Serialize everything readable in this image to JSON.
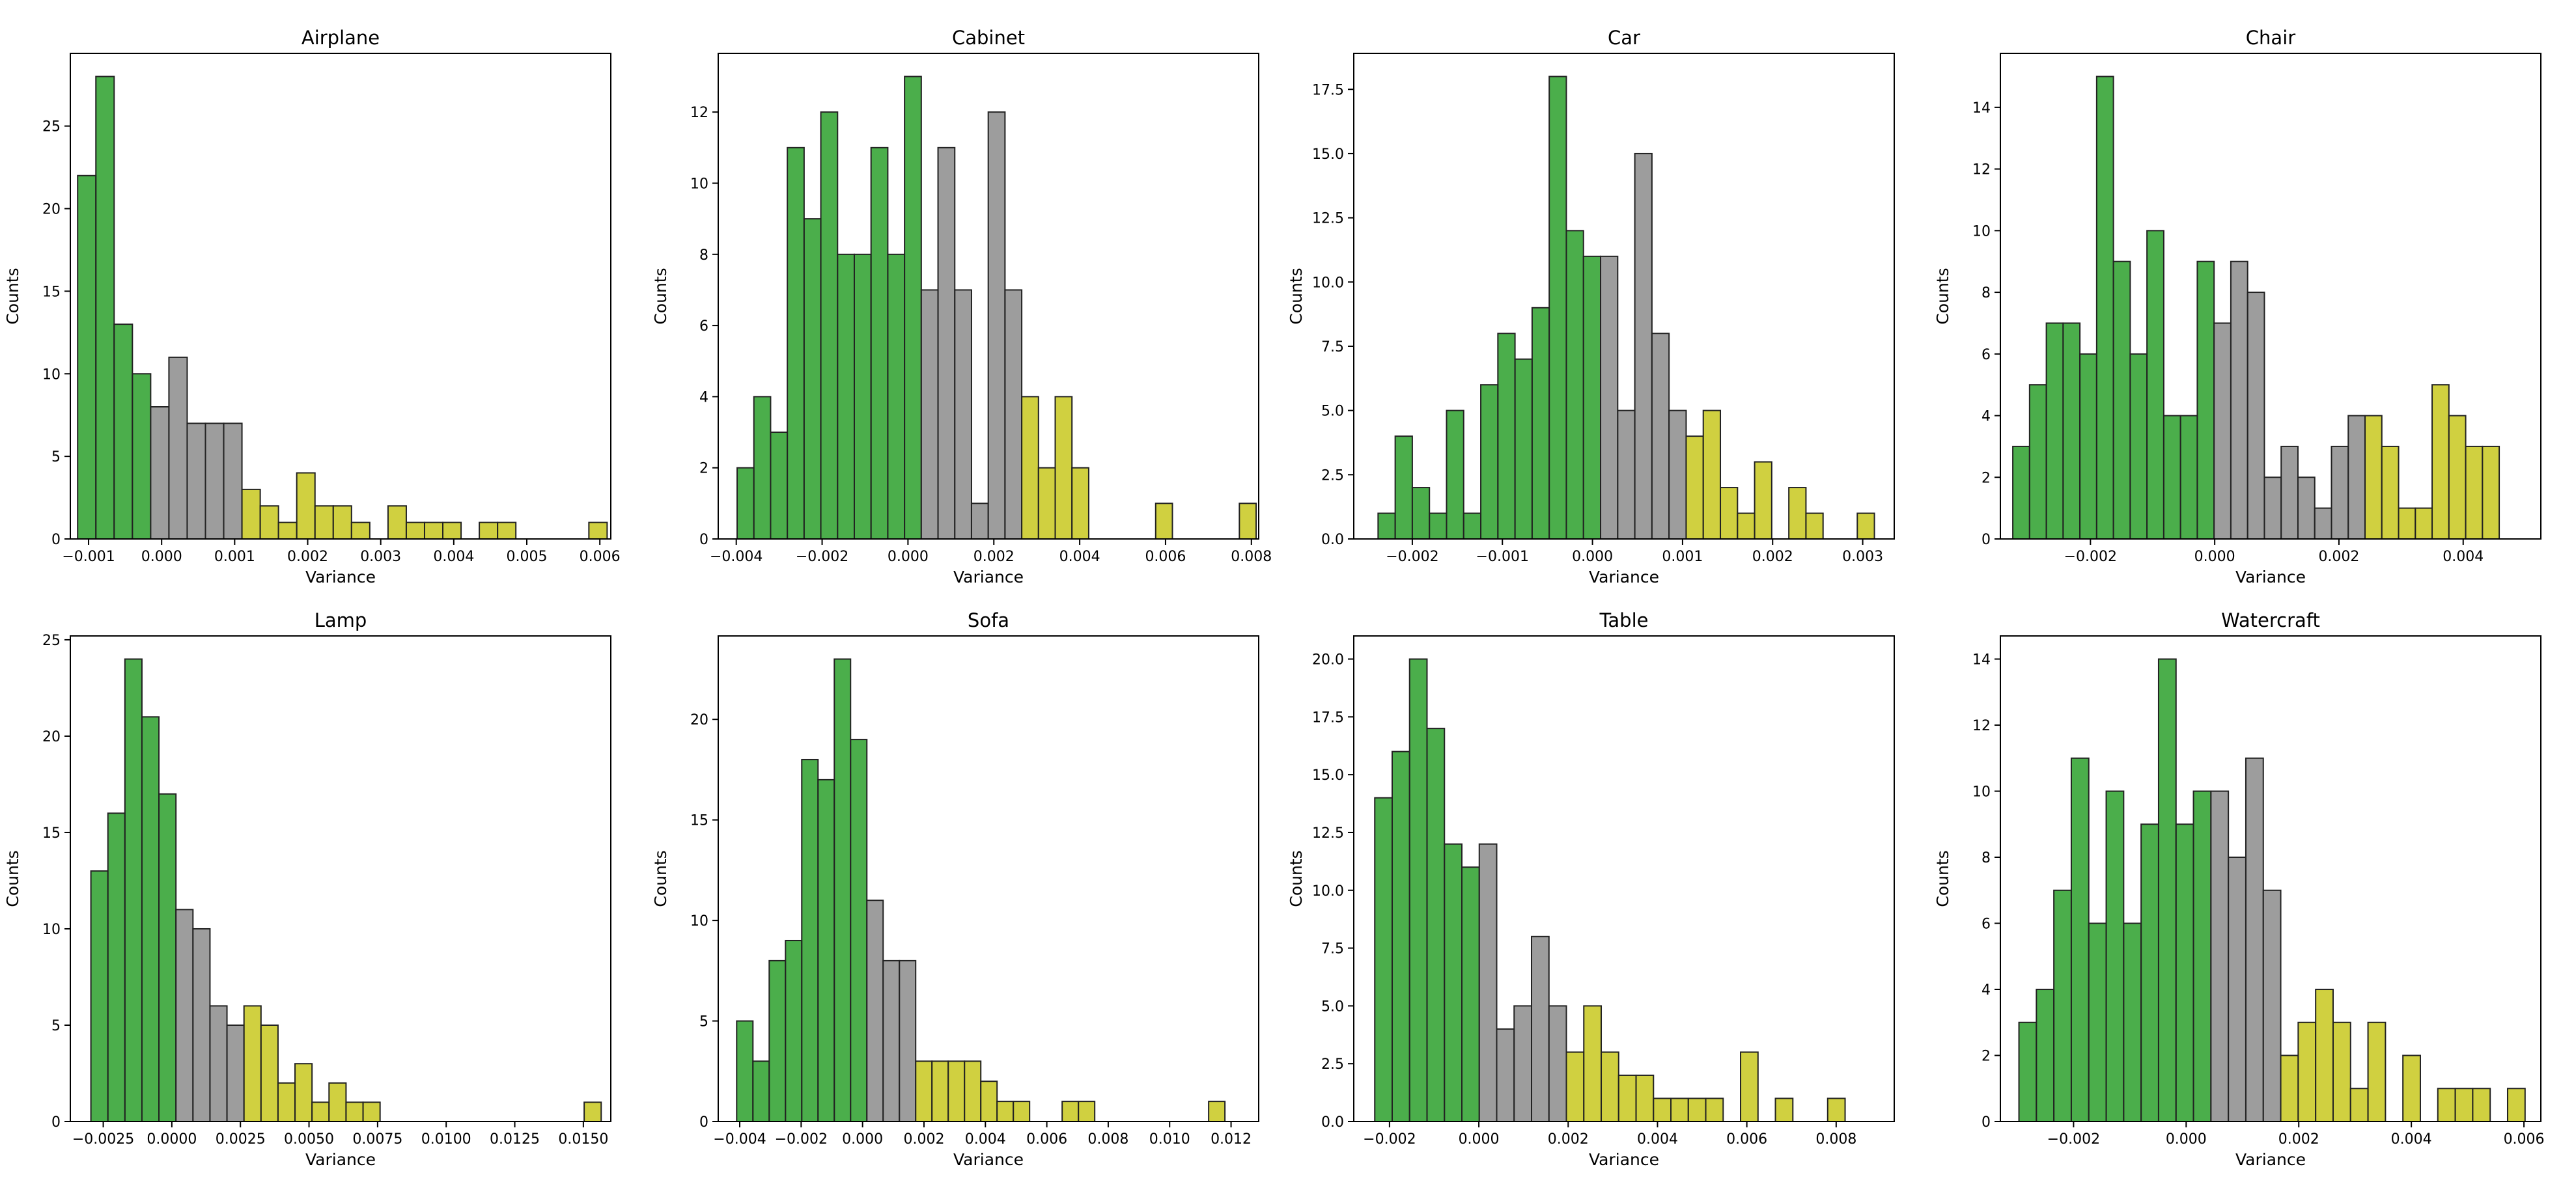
{
  "figure": {
    "colors": {
      "low": "#2ca02c",
      "mid": "#8c8c8c",
      "high": "#c8c81e",
      "edge": "#222222",
      "axis": "#000000"
    },
    "bar_alpha": 0.85
  },
  "chart_data": [
    {
      "type": "bar",
      "title": "Airplane",
      "xlabel": "Variance",
      "ylabel": "Counts",
      "xlim": [
        -0.00125,
        0.00615
      ],
      "ylim": [
        0,
        29.4
      ],
      "xticks": [
        -0.001,
        0.0,
        0.001,
        0.002,
        0.003,
        0.004,
        0.005,
        0.006
      ],
      "xtick_labels": [
        "−0.001",
        "0.000",
        "0.001",
        "0.002",
        "0.003",
        "0.004",
        "0.005",
        "0.006"
      ],
      "yticks": [
        0,
        5,
        10,
        15,
        20,
        25
      ],
      "ytick_labels": [
        "0",
        "5",
        "10",
        "15",
        "20",
        "25"
      ],
      "bin_start": -0.00115,
      "bin_width": 0.00025,
      "counts": [
        22,
        28,
        13,
        10,
        8,
        11,
        7,
        7,
        7,
        3,
        2,
        1,
        4,
        2,
        2,
        1,
        0,
        2,
        1,
        1,
        1,
        0,
        1,
        1,
        0,
        0,
        0,
        0,
        1
      ],
      "groups": [
        "low",
        "low",
        "low",
        "low",
        "mid",
        "mid",
        "mid",
        "mid",
        "mid",
        "high",
        "high",
        "high",
        "high",
        "high",
        "high",
        "high",
        "high",
        "high",
        "high",
        "high",
        "high",
        "high",
        "high",
        "high",
        "high",
        "high",
        "high",
        "high",
        "high"
      ]
    },
    {
      "type": "bar",
      "title": "Cabinet",
      "xlabel": "Variance",
      "ylabel": "Counts",
      "xlim": [
        -0.00442,
        0.00817
      ],
      "ylim": [
        0,
        13.65
      ],
      "xticks": [
        -0.004,
        -0.002,
        0.0,
        0.002,
        0.004,
        0.006,
        0.008
      ],
      "xtick_labels": [
        "−0.004",
        "−0.002",
        "0.000",
        "0.002",
        "0.004",
        "0.006",
        "0.008"
      ],
      "yticks": [
        0,
        2,
        4,
        6,
        8,
        10,
        12
      ],
      "ytick_labels": [
        "0",
        "2",
        "4",
        "6",
        "8",
        "10",
        "12"
      ],
      "bin_start": -0.00398,
      "bin_width": 0.00039,
      "counts": [
        2,
        4,
        3,
        11,
        9,
        12,
        8,
        8,
        11,
        8,
        13,
        7,
        11,
        7,
        1,
        12,
        7,
        4,
        2,
        4,
        2,
        0,
        0,
        0,
        0,
        1,
        0,
        0,
        0,
        0,
        1
      ],
      "groups": [
        "low",
        "low",
        "low",
        "low",
        "low",
        "low",
        "low",
        "low",
        "low",
        "low",
        "low",
        "mid",
        "mid",
        "mid",
        "mid",
        "mid",
        "mid",
        "high",
        "high",
        "high",
        "high",
        "high",
        "high",
        "high",
        "high",
        "high",
        "high",
        "high",
        "high",
        "high",
        "high"
      ]
    },
    {
      "type": "bar",
      "title": "Car",
      "xlabel": "Variance",
      "ylabel": "Counts",
      "xlim": [
        -0.00265,
        0.00335
      ],
      "ylim": [
        0,
        18.9
      ],
      "xticks": [
        -0.002,
        -0.001,
        0.0,
        0.001,
        0.002,
        0.003
      ],
      "xtick_labels": [
        "−0.002",
        "−0.001",
        "0.000",
        "0.001",
        "0.002",
        "0.003"
      ],
      "yticks": [
        0,
        2.5,
        5,
        7.5,
        10,
        12.5,
        15,
        17.5
      ],
      "ytick_labels": [
        "0.0",
        "2.5",
        "5.0",
        "7.5",
        "10.0",
        "12.5",
        "15.0",
        "17.5"
      ],
      "bin_start": -0.00238,
      "bin_width": 0.00019,
      "counts": [
        1,
        4,
        2,
        1,
        5,
        1,
        6,
        8,
        7,
        9,
        18,
        12,
        11,
        11,
        5,
        15,
        8,
        5,
        4,
        5,
        2,
        1,
        3,
        0,
        2,
        1,
        0,
        0,
        1
      ],
      "groups": [
        "low",
        "low",
        "low",
        "low",
        "low",
        "low",
        "low",
        "low",
        "low",
        "low",
        "low",
        "low",
        "low",
        "mid",
        "mid",
        "mid",
        "mid",
        "mid",
        "high",
        "high",
        "high",
        "high",
        "high",
        "high",
        "high",
        "high",
        "high",
        "high",
        "high"
      ]
    },
    {
      "type": "bar",
      "title": "Chair",
      "xlabel": "Variance",
      "ylabel": "Counts",
      "xlim": [
        -0.00345,
        0.00525
      ],
      "ylim": [
        0,
        15.75
      ],
      "xticks": [
        -0.002,
        0.0,
        0.002,
        0.004
      ],
      "xtick_labels": [
        "−0.002",
        "0.000",
        "0.002",
        "0.004"
      ],
      "yticks": [
        0,
        2,
        4,
        6,
        8,
        10,
        12,
        14
      ],
      "ytick_labels": [
        "0",
        "2",
        "4",
        "6",
        "8",
        "10",
        "12",
        "14"
      ],
      "bin_start": -0.00325,
      "bin_width": 0.00027,
      "counts": [
        3,
        5,
        7,
        7,
        6,
        15,
        9,
        6,
        10,
        4,
        4,
        9,
        7,
        9,
        8,
        2,
        3,
        2,
        1,
        3,
        4,
        4,
        3,
        1,
        1,
        5,
        4,
        3,
        3
      ],
      "groups": [
        "low",
        "low",
        "low",
        "low",
        "low",
        "low",
        "low",
        "low",
        "low",
        "low",
        "low",
        "low",
        "mid",
        "mid",
        "mid",
        "mid",
        "mid",
        "mid",
        "mid",
        "mid",
        "mid",
        "high",
        "high",
        "high",
        "high",
        "high",
        "high",
        "high",
        "high"
      ]
    },
    {
      "type": "bar",
      "title": "Lamp",
      "xlabel": "Variance",
      "ylabel": "Counts",
      "xlim": [
        -0.0037,
        0.016
      ],
      "ylim": [
        0,
        25.2
      ],
      "xticks": [
        -0.0025,
        0.0,
        0.0025,
        0.005,
        0.0075,
        0.01,
        0.0125,
        0.015
      ],
      "xtick_labels": [
        "−0.0025",
        "0.0000",
        "0.0025",
        "0.0050",
        "0.0075",
        "0.0100",
        "0.0125",
        "0.0150"
      ],
      "yticks": [
        0,
        5,
        10,
        15,
        20,
        25
      ],
      "ytick_labels": [
        "0",
        "5",
        "10",
        "15",
        "20",
        "25"
      ],
      "bin_start": -0.00295,
      "bin_width": 0.00062,
      "counts": [
        13,
        16,
        24,
        21,
        17,
        11,
        10,
        6,
        5,
        6,
        5,
        2,
        3,
        1,
        2,
        1,
        1,
        0,
        0,
        0,
        0,
        0,
        0,
        0,
        0,
        0,
        0,
        0,
        0,
        1
      ],
      "groups": [
        "low",
        "low",
        "low",
        "low",
        "low",
        "mid",
        "mid",
        "mid",
        "mid",
        "high",
        "high",
        "high",
        "high",
        "high",
        "high",
        "high",
        "high",
        "high",
        "high",
        "high",
        "high",
        "high",
        "high",
        "high",
        "high",
        "high",
        "high",
        "high",
        "high",
        "high"
      ]
    },
    {
      "type": "bar",
      "title": "Sofa",
      "xlabel": "Variance",
      "ylabel": "Counts",
      "xlim": [
        -0.0047,
        0.0129
      ],
      "ylim": [
        0,
        24.15
      ],
      "xticks": [
        -0.004,
        -0.002,
        0.0,
        0.002,
        0.004,
        0.006,
        0.008,
        0.01,
        0.012
      ],
      "xtick_labels": [
        "−0.004",
        "−0.002",
        "0.000",
        "0.002",
        "0.004",
        "0.006",
        "0.008",
        "0.010",
        "0.012"
      ],
      "yticks": [
        0,
        5,
        10,
        15,
        20
      ],
      "ytick_labels": [
        "0",
        "5",
        "10",
        "15",
        "20"
      ],
      "bin_start": -0.0041,
      "bin_width": 0.00053,
      "counts": [
        5,
        3,
        8,
        9,
        18,
        17,
        23,
        19,
        11,
        8,
        8,
        3,
        3,
        3,
        3,
        2,
        1,
        1,
        0,
        0,
        1,
        1,
        0,
        0,
        0,
        0,
        0,
        0,
        0,
        1
      ],
      "groups": [
        "low",
        "low",
        "low",
        "low",
        "low",
        "low",
        "low",
        "low",
        "mid",
        "mid",
        "mid",
        "high",
        "high",
        "high",
        "high",
        "high",
        "high",
        "high",
        "high",
        "high",
        "high",
        "high",
        "high",
        "high",
        "high",
        "high",
        "high",
        "high",
        "high",
        "high"
      ]
    },
    {
      "type": "bar",
      "title": "Table",
      "xlabel": "Variance",
      "ylabel": "Counts",
      "xlim": [
        -0.0028,
        0.0093
      ],
      "ylim": [
        0,
        21.0
      ],
      "xticks": [
        -0.002,
        0.0,
        0.002,
        0.004,
        0.006,
        0.008
      ],
      "xtick_labels": [
        "−0.002",
        "0.000",
        "0.002",
        "0.004",
        "0.006",
        "0.008"
      ],
      "yticks": [
        0,
        2.5,
        5,
        7.5,
        10,
        12.5,
        15,
        17.5,
        20
      ],
      "ytick_labels": [
        "0.0",
        "2.5",
        "5.0",
        "7.5",
        "10.0",
        "12.5",
        "15.0",
        "17.5",
        "20.0"
      ],
      "bin_start": -0.00233,
      "bin_width": 0.00039,
      "counts": [
        14,
        16,
        20,
        17,
        12,
        11,
        12,
        4,
        5,
        8,
        5,
        3,
        5,
        3,
        2,
        2,
        1,
        1,
        1,
        1,
        0,
        3,
        0,
        1,
        0,
        0,
        1
      ],
      "groups": [
        "low",
        "low",
        "low",
        "low",
        "low",
        "low",
        "mid",
        "mid",
        "mid",
        "mid",
        "mid",
        "high",
        "high",
        "high",
        "high",
        "high",
        "high",
        "high",
        "high",
        "high",
        "high",
        "high",
        "high",
        "high",
        "high",
        "high",
        "high"
      ]
    },
    {
      "type": "bar",
      "title": "Watercraft",
      "xlabel": "Variance",
      "ylabel": "Counts",
      "xlim": [
        -0.0033,
        0.0063
      ],
      "ylim": [
        0,
        14.7
      ],
      "xticks": [
        -0.002,
        0.0,
        0.002,
        0.004,
        0.006
      ],
      "xtick_labels": [
        "−0.002",
        "0.000",
        "0.002",
        "0.004",
        "0.006"
      ],
      "yticks": [
        0,
        2,
        4,
        6,
        8,
        10,
        12,
        14
      ],
      "ytick_labels": [
        "0",
        "2",
        "4",
        "6",
        "8",
        "10",
        "12",
        "14"
      ],
      "bin_start": -0.00297,
      "bin_width": 0.00031,
      "counts": [
        3,
        4,
        7,
        11,
        6,
        10,
        6,
        9,
        14,
        9,
        10,
        10,
        8,
        11,
        7,
        2,
        3,
        4,
        3,
        1,
        3,
        0,
        2,
        0,
        1,
        1,
        1,
        0,
        1
      ],
      "groups": [
        "low",
        "low",
        "low",
        "low",
        "low",
        "low",
        "low",
        "low",
        "low",
        "low",
        "low",
        "mid",
        "mid",
        "mid",
        "mid",
        "high",
        "high",
        "high",
        "high",
        "high",
        "high",
        "high",
        "high",
        "high",
        "high",
        "high",
        "high",
        "high",
        "high"
      ]
    }
  ]
}
